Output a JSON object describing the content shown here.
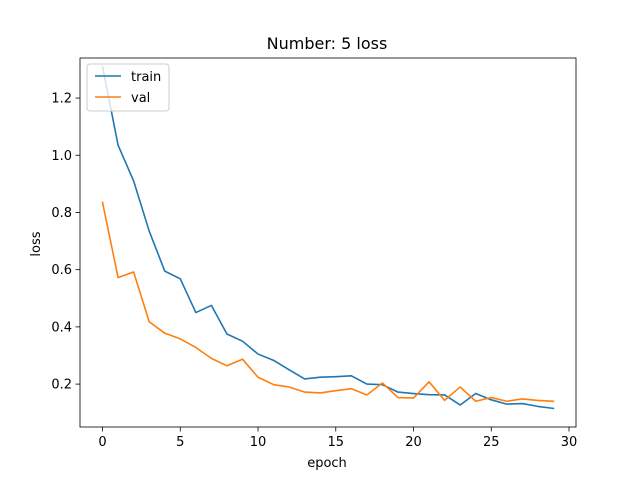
{
  "chart_data": {
    "type": "line",
    "title": "Number: 5 loss",
    "xlabel": "epoch",
    "ylabel": "loss",
    "xlim": [
      -1.45,
      30.45
    ],
    "ylim": [
      0.05,
      1.34
    ],
    "xticks": [
      0,
      5,
      10,
      15,
      20,
      25,
      30
    ],
    "yticks": [
      0.2,
      0.4,
      0.6,
      0.8,
      1.0,
      1.2
    ],
    "ytick_labels": [
      "0.2",
      "0.4",
      "0.6",
      "0.8",
      "1.0",
      "1.2"
    ],
    "grid": false,
    "legend_position": "top-left",
    "x": [
      0,
      1,
      2,
      3,
      4,
      5,
      6,
      7,
      8,
      9,
      10,
      11,
      12,
      13,
      14,
      15,
      16,
      17,
      18,
      19,
      20,
      21,
      22,
      23,
      24,
      25,
      26,
      27,
      28,
      29
    ],
    "series": [
      {
        "name": "train",
        "color": "#1f77b4",
        "values": [
          1.31,
          1.035,
          0.91,
          0.735,
          0.595,
          0.568,
          0.45,
          0.475,
          0.375,
          0.35,
          0.305,
          0.283,
          0.25,
          0.218,
          0.224,
          0.226,
          0.229,
          0.2,
          0.198,
          0.172,
          0.167,
          0.163,
          0.162,
          0.127,
          0.167,
          0.145,
          0.13,
          0.132,
          0.122,
          0.115
        ]
      },
      {
        "name": "val",
        "color": "#ff7f0e",
        "values": [
          0.835,
          0.572,
          0.592,
          0.418,
          0.378,
          0.358,
          0.328,
          0.29,
          0.264,
          0.287,
          0.224,
          0.198,
          0.19,
          0.172,
          0.169,
          0.177,
          0.184,
          0.162,
          0.204,
          0.153,
          0.151,
          0.208,
          0.143,
          0.19,
          0.14,
          0.153,
          0.14,
          0.148,
          0.143,
          0.14
        ]
      }
    ]
  }
}
